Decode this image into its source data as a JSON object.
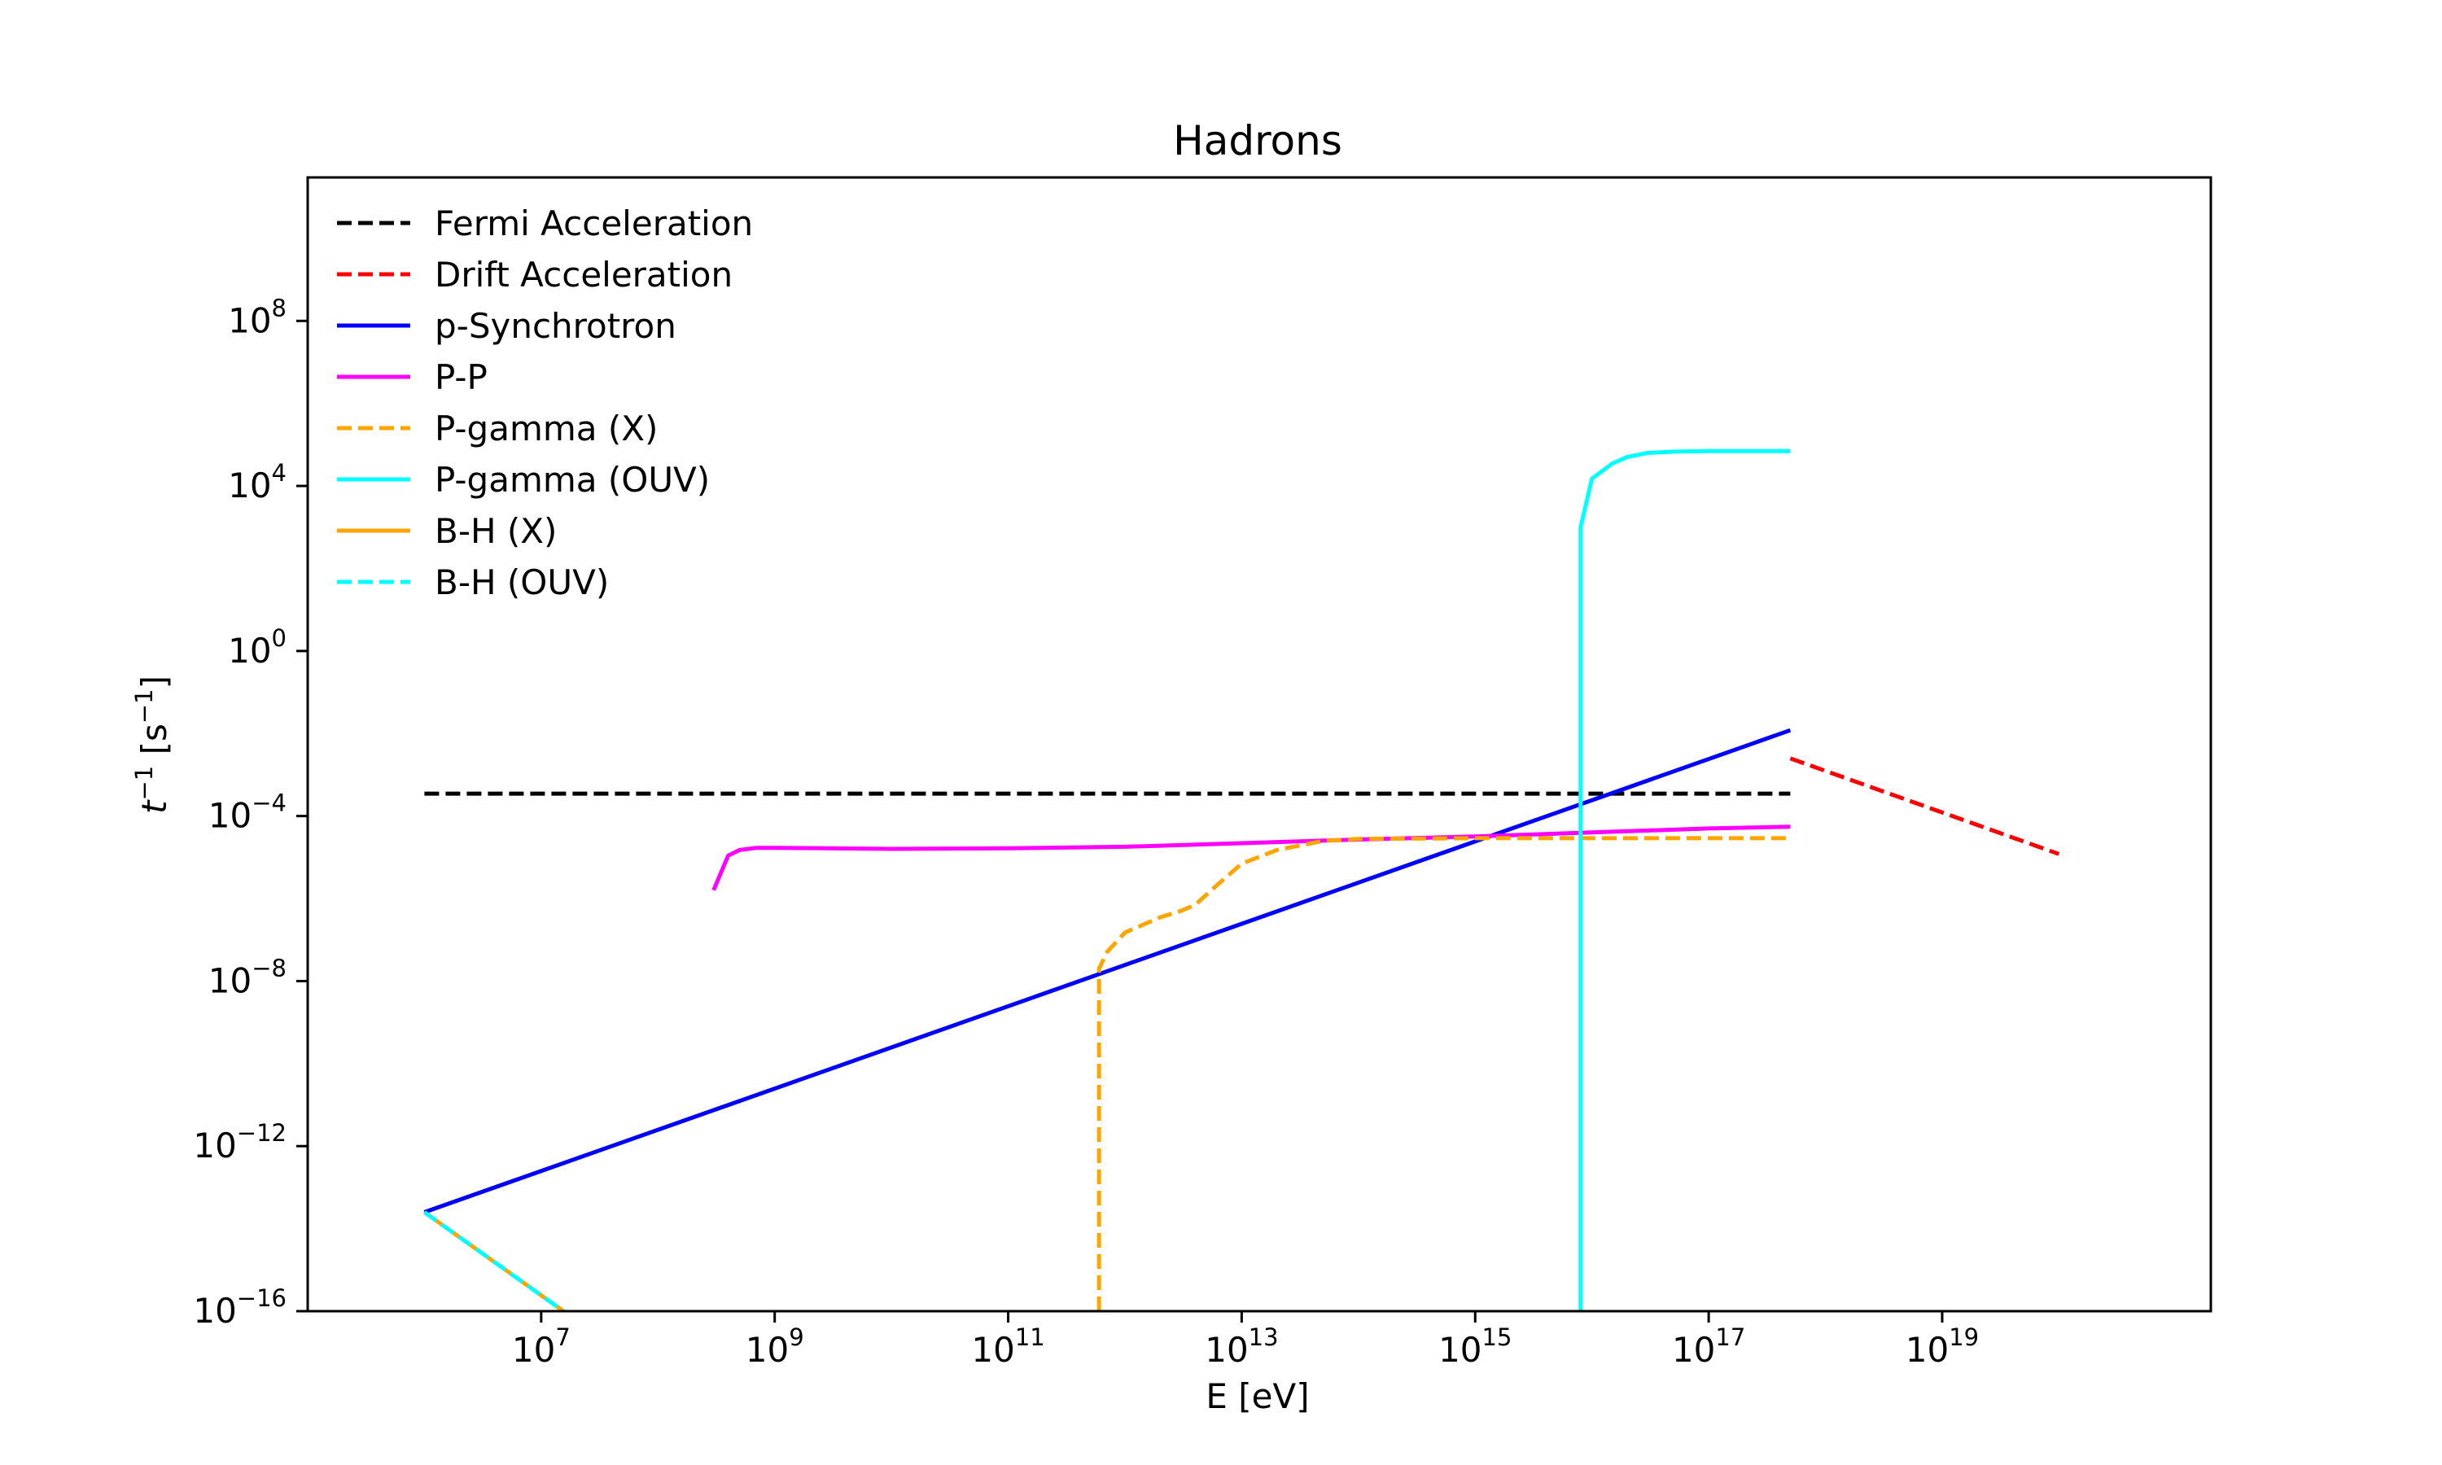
{
  "chart_data": {
    "type": "line",
    "title": "Hadrons",
    "xlabel": "E [eV]",
    "ylabel": "t⁻¹ [s⁻¹]",
    "xscale": "log",
    "yscale": "log",
    "xlim": [
      100000.0,
      2e+21
    ],
    "ylim": [
      1e-16,
      300000000000.0
    ],
    "x_ticks": [
      {
        "value": 10000000.0,
        "base": "10",
        "exp": "7"
      },
      {
        "value": 1000000000.0,
        "base": "10",
        "exp": "9"
      },
      {
        "value": 100000000000.0,
        "base": "10",
        "exp": "11"
      },
      {
        "value": 10000000000000.0,
        "base": "10",
        "exp": "13"
      },
      {
        "value": 1000000000000000.0,
        "base": "10",
        "exp": "15"
      },
      {
        "value": 1e+17,
        "base": "10",
        "exp": "17"
      },
      {
        "value": 1e+19,
        "base": "10",
        "exp": "19"
      }
    ],
    "y_ticks": [
      {
        "value": 1e-16,
        "base": "10",
        "exp": "−16"
      },
      {
        "value": 1e-12,
        "base": "10",
        "exp": "−12"
      },
      {
        "value": 1e-08,
        "base": "10",
        "exp": "−8"
      },
      {
        "value": 0.0001,
        "base": "10",
        "exp": "−4"
      },
      {
        "value": 1.0,
        "base": "10",
        "exp": "0"
      },
      {
        "value": 10000.0,
        "base": "10",
        "exp": "4"
      },
      {
        "value": 100000000.0,
        "base": "10",
        "exp": "8"
      }
    ],
    "legend_position": "top-left",
    "grid": false,
    "series": [
      {
        "name": "Fermi Acceleration",
        "color": "#000000",
        "style": "dashed",
        "x": [
          1000000.0,
          5e+17
        ],
        "y": [
          0.00035,
          0.00035
        ]
      },
      {
        "name": "Drift Acceleration",
        "color": "#ff0000",
        "style": "dashed",
        "x": [
          5e+17,
          1e+20
        ],
        "y": [
          0.0025,
          1.2e-05
        ]
      },
      {
        "name": "p-Synchrotron",
        "color": "#0000ff",
        "style": "solid",
        "x": [
          1000000.0,
          5e+17
        ],
        "y": [
          2.5e-14,
          0.012
        ]
      },
      {
        "name": "P-P",
        "color": "#ff00ff",
        "style": "solid",
        "x": [
          300000000.0,
          400000000.0,
          500000000.0,
          700000000.0,
          1000000000.0,
          10000000000.0,
          100000000000.0,
          1000000000000.0,
          10000000000000.0,
          100000000000000.0,
          1000000000000000.0,
          1e+16,
          1e+17,
          5e+17
        ],
        "y": [
          1.6e-06,
          1.1e-05,
          1.5e-05,
          1.7e-05,
          1.7e-05,
          1.6e-05,
          1.65e-05,
          1.8e-05,
          2.2e-05,
          2.7e-05,
          3.2e-05,
          4e-05,
          5e-05,
          5.5e-05
        ]
      },
      {
        "name": "P-gamma (X)",
        "color": "#ffa500",
        "style": "dashed",
        "x": [
          600000000000.0,
          600000000000.0,
          700000000000.0,
          1000000000000.0,
          2000000000000.0,
          3000000000000.0,
          4000000000000.0,
          6000000000000.0,
          10000000000000.0,
          20000000000000.0,
          50000000000000.0,
          100000000000000.0,
          1000000000000000.0,
          1e+16,
          5e+17
        ],
        "y": [
          1e-16,
          2e-08,
          5e-08,
          1.5e-07,
          3.5e-07,
          5e-07,
          7e-07,
          2e-06,
          7e-06,
          1.5e-05,
          2.5e-05,
          2.8e-05,
          2.9e-05,
          2.9e-05,
          2.9e-05
        ]
      },
      {
        "name": "P-gamma (OUV)",
        "color": "#00ffff",
        "style": "solid",
        "x": [
          8000000000000000.0,
          8000000000000000.0,
          1e+16,
          1.5e+16,
          2e+16,
          3e+16,
          5e+16,
          1e+17,
          5e+17
        ],
        "y": [
          1e-16,
          1000.0,
          15000.0,
          35000.0,
          50000.0,
          63000.0,
          68000.0,
          70000.0,
          70000.0
        ]
      },
      {
        "name": "B-H (X)",
        "color": "#ffa500",
        "style": "solid",
        "x": [
          1000000.0,
          20000000.0
        ],
        "y": [
          2.5e-14,
          6e-17
        ]
      },
      {
        "name": "B-H (OUV)",
        "color": "#00ffff",
        "style": "dashed",
        "x": [
          1000000.0,
          20000000.0
        ],
        "y": [
          2.5e-14,
          6e-17
        ]
      }
    ]
  }
}
